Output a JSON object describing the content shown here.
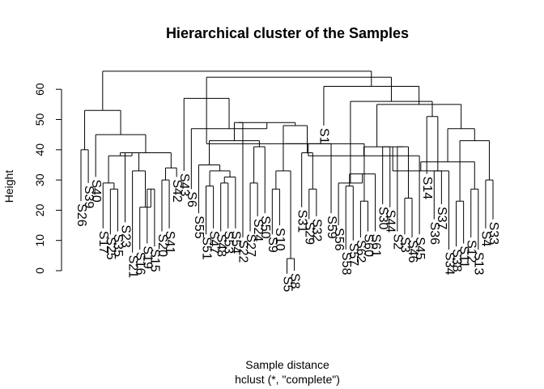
{
  "chart_data": {
    "type": "dendrogram",
    "title": "Hierarchical cluster of the Samples",
    "xlabel": "Sample distance",
    "sublabel": "hclust (*, \"complete\")",
    "ylabel": "Height",
    "yticks": [
      0,
      10,
      20,
      30,
      40,
      50,
      60
    ],
    "ylim": [
      0,
      66
    ],
    "leaves": [
      {
        "label": "S26",
        "y": 23
      },
      {
        "label": "S39",
        "y": 29
      },
      {
        "label": "S40",
        "y": 31
      },
      {
        "label": "S17",
        "y": 14
      },
      {
        "label": "S25",
        "y": 12
      },
      {
        "label": "S35",
        "y": 13
      },
      {
        "label": "S23",
        "y": 16
      },
      {
        "label": "S21",
        "y": 6
      },
      {
        "label": "S16",
        "y": 7
      },
      {
        "label": "S19",
        "y": 9
      },
      {
        "label": "S15",
        "y": 8
      },
      {
        "label": "S20",
        "y": 13
      },
      {
        "label": "S41",
        "y": 14
      },
      {
        "label": "S42",
        "y": 31
      },
      {
        "label": "S43",
        "y": 33
      },
      {
        "label": "S6",
        "y": 27
      },
      {
        "label": "S55",
        "y": 19
      },
      {
        "label": "S51",
        "y": 12
      },
      {
        "label": "S47",
        "y": 14
      },
      {
        "label": "S48",
        "y": 13
      },
      {
        "label": "S53",
        "y": 14
      },
      {
        "label": "S54",
        "y": 14
      },
      {
        "label": "S22",
        "y": 11
      },
      {
        "label": "S27",
        "y": 13
      },
      {
        "label": "S24",
        "y": 18
      },
      {
        "label": "S50",
        "y": 19
      },
      {
        "label": "S9",
        "y": 12
      },
      {
        "label": "S10",
        "y": 15
      },
      {
        "label": "S5",
        "y": -1
      },
      {
        "label": "S8",
        "y": 0
      },
      {
        "label": "S31",
        "y": 21
      },
      {
        "label": "S29",
        "y": 17
      },
      {
        "label": "S32",
        "y": 18
      },
      {
        "label": "S1",
        "y": 48
      },
      {
        "label": "S59",
        "y": 19
      },
      {
        "label": "S56",
        "y": 15
      },
      {
        "label": "S58",
        "y": 7
      },
      {
        "label": "S57",
        "y": 10
      },
      {
        "label": "S62",
        "y": 11
      },
      {
        "label": "S60",
        "y": 13
      },
      {
        "label": "S61",
        "y": 13
      },
      {
        "label": "S30",
        "y": 22
      },
      {
        "label": "S44",
        "y": 21
      },
      {
        "label": "S2",
        "y": 13
      },
      {
        "label": "S3",
        "y": 12
      },
      {
        "label": "S46",
        "y": 11
      },
      {
        "label": "S45",
        "y": 12
      },
      {
        "label": "S14",
        "y": 32
      },
      {
        "label": "S36",
        "y": 17
      },
      {
        "label": "S37",
        "y": 22
      },
      {
        "label": "S34",
        "y": 7
      },
      {
        "label": "S38",
        "y": 8
      },
      {
        "label": "S11",
        "y": 9
      },
      {
        "label": "S12",
        "y": 11
      },
      {
        "label": "S13",
        "y": 7
      },
      {
        "label": "S4",
        "y": 14
      },
      {
        "label": "S33",
        "y": 17
      }
    ],
    "merges": [
      {
        "l": "S26",
        "r": "S39",
        "h": 40
      },
      {
        "l": "S25",
        "r": "S35",
        "h": 27
      },
      {
        "l": "S17",
        "r": "m2",
        "h": 29
      },
      {
        "l": "S19",
        "r": "S15",
        "h": 27
      },
      {
        "l": "S16",
        "r": "m4",
        "h": 21
      },
      {
        "l": "S21",
        "r": "m5",
        "h": 33
      },
      {
        "l": "S23",
        "r": "m6",
        "h": 39
      },
      {
        "l": "m3",
        "r": "m7",
        "h": 38
      },
      {
        "l": "S20",
        "r": "S41",
        "h": 30
      },
      {
        "l": "m9",
        "r": "S42",
        "h": 34
      },
      {
        "l": "m8",
        "r": "m10",
        "h": 39
      },
      {
        "l": "S40",
        "r": "m11",
        "h": 45
      },
      {
        "l": "m1",
        "r": "m12",
        "h": 53
      },
      {
        "l": "S51",
        "r": "S47",
        "h": 28
      },
      {
        "l": "S48",
        "r": "S53",
        "h": 29
      },
      {
        "l": "m15",
        "r": "S54",
        "h": 31
      },
      {
        "l": "m14",
        "r": "m16",
        "h": 33
      },
      {
        "l": "S55",
        "r": "m17",
        "h": 35
      },
      {
        "l": "S27",
        "r": "S24",
        "h": 29
      },
      {
        "l": "m19",
        "r": "S50",
        "h": 41
      },
      {
        "l": "m18",
        "r": "m20",
        "h": 43
      },
      {
        "l": "S9",
        "r": "S10",
        "h": 27
      },
      {
        "l": "S5",
        "r": "S8",
        "h": 4
      },
      {
        "l": "m22",
        "r": "m23",
        "h": 33
      },
      {
        "l": "S29",
        "r": "S32",
        "h": 27
      },
      {
        "l": "S31",
        "r": "m25",
        "h": 39
      },
      {
        "l": "m24",
        "r": "m26",
        "h": 48
      },
      {
        "l": "S22",
        "r": "m21",
        "h": 49
      },
      {
        "l": "m28",
        "r": "m27",
        "h": 49
      },
      {
        "l": "S6",
        "r": "m29",
        "h": 47
      },
      {
        "l": "S43",
        "r": "m30",
        "h": 57
      },
      {
        "l": "S58",
        "r": "S57",
        "h": 28
      },
      {
        "l": "S62",
        "r": "S60",
        "h": 23
      },
      {
        "l": "m32",
        "r": "S61",
        "h": 32
      },
      {
        "l": "m31",
        "r": "m33",
        "h": 42
      },
      {
        "l": "S56",
        "r": "m34",
        "h": 29
      },
      {
        "l": "S59",
        "r": "m35",
        "h": 42
      },
      {
        "l": "S3",
        "r": "S46",
        "h": 24
      },
      {
        "l": "S45",
        "r": "m37",
        "h": 38
      },
      {
        "l": "S2",
        "r": "m38",
        "h": 41
      },
      {
        "l": "S44",
        "r": "m39",
        "h": 41
      },
      {
        "l": "S30",
        "r": "m40",
        "h": 41
      },
      {
        "l": "S38",
        "r": "S11",
        "h": 23
      },
      {
        "l": "S34",
        "r": "m42",
        "h": 33
      },
      {
        "l": "S12",
        "r": "S13",
        "h": 27
      },
      {
        "l": "S4",
        "r": "S33",
        "h": 30
      },
      {
        "l": "m44",
        "r": "m45",
        "h": 36
      },
      {
        "l": "m43",
        "r": "m46",
        "h": 43
      },
      {
        "l": "S36",
        "r": "S37",
        "h": 33
      },
      {
        "l": "m48",
        "r": "m47",
        "h": 47
      },
      {
        "l": "S14",
        "r": "m49",
        "h": 51
      },
      {
        "l": "m41",
        "r": "m50",
        "h": 55
      },
      {
        "l": "m36",
        "r": "m51",
        "h": 56
      },
      {
        "l": "S1",
        "r": "m52",
        "h": 61
      },
      {
        "l": "m31x",
        "r": "m53",
        "h": 64
      },
      {
        "l": "m13",
        "r": "m54",
        "h": 66
      }
    ]
  }
}
